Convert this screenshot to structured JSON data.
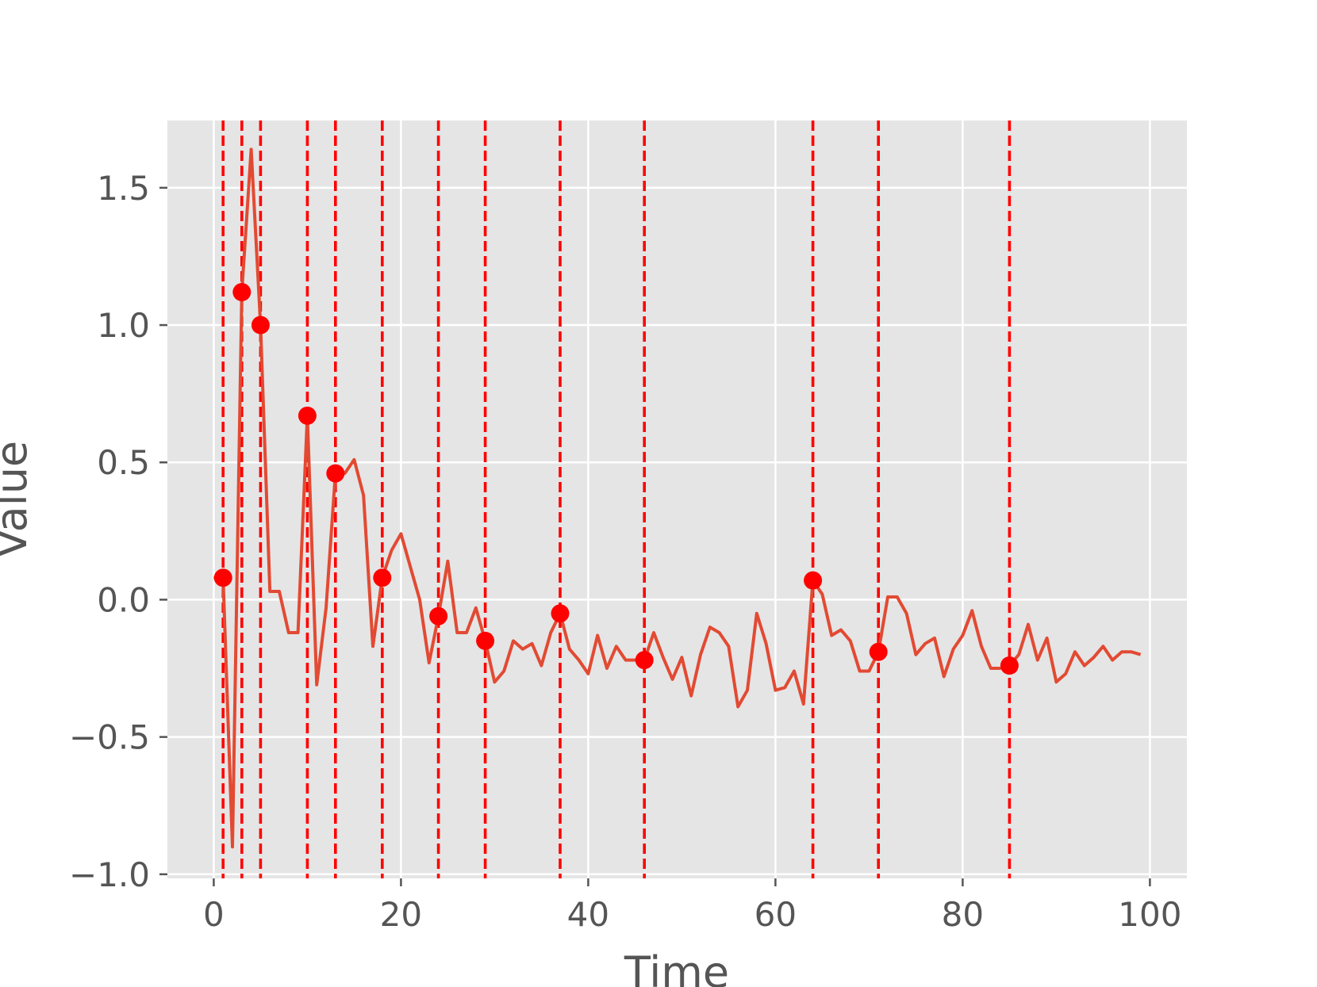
{
  "chart_data": {
    "type": "line",
    "title": "",
    "xlabel": "Time",
    "ylabel": "Value",
    "xlim": [
      -4.95,
      103.95
    ],
    "ylim": [
      -1.015,
      1.745
    ],
    "xticks": [
      0,
      20,
      40,
      60,
      80,
      100
    ],
    "xtick_labels": [
      "0",
      "20",
      "40",
      "60",
      "80",
      "100"
    ],
    "yticks": [
      -1.0,
      -0.5,
      0.0,
      0.5,
      1.0,
      1.5
    ],
    "ytick_labels": [
      "−1.0",
      "−0.5",
      "0.0",
      "0.5",
      "1.0",
      "1.5"
    ],
    "grid": true,
    "legend": false,
    "colors": {
      "background": "#E5E5E5",
      "grid": "#FFFFFF",
      "series": "#E24A33",
      "markers": "#FF0000",
      "vlines": "#FF0000",
      "text": "#555555"
    },
    "series": [
      {
        "x": [
          0,
          1,
          2,
          3,
          4,
          5,
          6,
          7,
          8,
          9,
          10,
          11,
          12,
          13,
          14,
          15,
          16,
          17,
          18,
          19,
          20,
          21,
          22,
          23,
          24,
          25,
          26,
          27,
          28,
          29,
          30,
          31,
          32,
          33,
          34,
          35,
          36,
          37,
          38,
          39,
          40,
          41,
          42,
          43,
          44,
          45,
          46,
          47,
          48,
          49,
          50,
          51,
          52,
          53,
          54,
          55,
          56,
          57,
          58,
          59,
          60,
          61,
          62,
          63,
          64,
          65,
          66,
          67,
          68,
          69,
          70,
          71,
          72,
          73,
          74,
          75,
          76,
          77,
          78,
          79,
          80,
          81,
          82,
          83,
          84,
          85,
          86,
          87,
          88,
          89,
          90,
          91,
          92,
          93,
          94,
          95,
          96,
          97,
          98,
          99
        ],
        "y": [
          0.08,
          0.08,
          -0.9,
          1.12,
          1.64,
          1.0,
          0.03,
          0.03,
          -0.12,
          -0.12,
          0.67,
          -0.31,
          -0.03,
          0.46,
          0.46,
          0.51,
          0.38,
          -0.17,
          0.08,
          0.18,
          0.24,
          0.12,
          0.0,
          -0.23,
          -0.06,
          0.14,
          -0.12,
          -0.12,
          -0.03,
          -0.15,
          -0.3,
          -0.26,
          -0.15,
          -0.18,
          -0.16,
          -0.24,
          -0.12,
          -0.05,
          -0.18,
          -0.22,
          -0.27,
          -0.13,
          -0.25,
          -0.17,
          -0.22,
          -0.22,
          -0.22,
          -0.12,
          -0.21,
          -0.29,
          -0.21,
          -0.35,
          -0.2,
          -0.1,
          -0.12,
          -0.17,
          -0.39,
          -0.33,
          -0.05,
          -0.16,
          -0.33,
          -0.32,
          -0.26,
          -0.38,
          0.07,
          0.02,
          -0.13,
          -0.11,
          -0.15,
          -0.26,
          -0.26,
          -0.19,
          0.01,
          0.01,
          -0.05,
          -0.2,
          -0.16,
          -0.14,
          -0.28,
          -0.18,
          -0.13,
          -0.04,
          -0.17,
          -0.25,
          -0.25,
          -0.24,
          -0.2,
          -0.09,
          -0.22,
          -0.14,
          -0.3,
          -0.27,
          -0.19,
          -0.24,
          -0.21,
          -0.17,
          -0.22,
          -0.19,
          -0.19,
          -0.2
        ]
      }
    ],
    "highlights": {
      "x": [
        1,
        3,
        5,
        10,
        13,
        18,
        24,
        29,
        37,
        46,
        64,
        71,
        85
      ],
      "y": [
        0.08,
        1.12,
        1.0,
        0.67,
        0.46,
        0.08,
        -0.06,
        -0.15,
        -0.05,
        -0.22,
        0.07,
        -0.19,
        -0.24
      ]
    }
  }
}
